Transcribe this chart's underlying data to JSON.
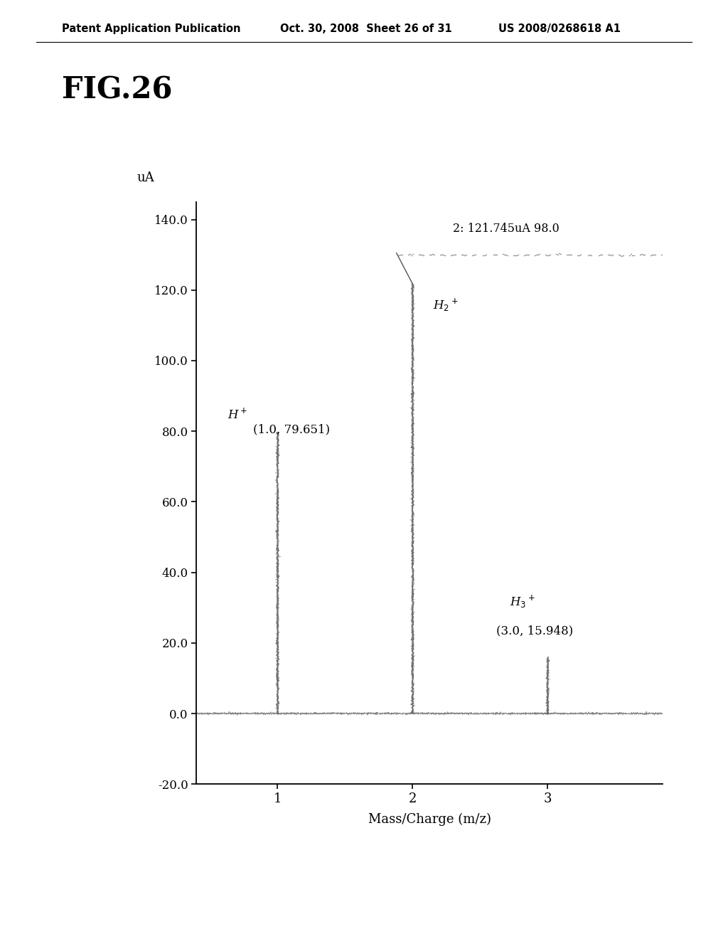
{
  "fig_label": "FIG.26",
  "header_left": "Patent Application Publication",
  "header_center": "Oct. 30, 2008  Sheet 26 of 31",
  "header_right": "US 2008/0268618 A1",
  "ylabel": "uA",
  "xlabel": "Mass/Charge (m/z)",
  "xlim": [
    0.4,
    3.85
  ],
  "ylim": [
    -20.0,
    145.0
  ],
  "yticks": [
    -20.0,
    0.0,
    20.0,
    40.0,
    60.0,
    80.0,
    100.0,
    120.0,
    140.0
  ],
  "xticks": [
    1,
    2,
    3
  ],
  "bars": [
    {
      "x": 1.0,
      "height": 79.651
    },
    {
      "x": 2.0,
      "height": 121.745
    },
    {
      "x": 3.0,
      "height": 15.948
    }
  ],
  "cursor_line_y": 130.0,
  "cursor_line_x_start": 2.0,
  "cursor_line_x_end": 3.85,
  "background_color": "#ffffff",
  "noise_seed": 42
}
